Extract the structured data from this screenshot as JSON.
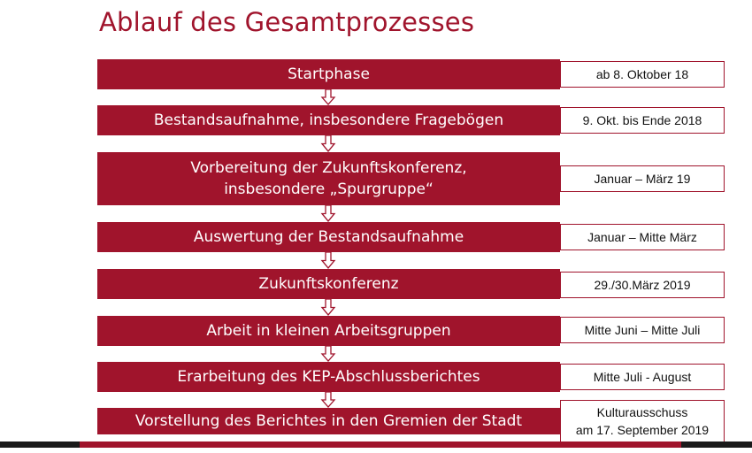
{
  "title": "Ablauf des Gesamtprozesses",
  "colors": {
    "accent": "#a0142c",
    "text_on_accent": "#ffffff"
  },
  "phases": [
    {
      "label": "Startphase",
      "date": "ab 8. Oktober 18"
    },
    {
      "label": "Bestandsaufnahme, insbesondere Fragebögen",
      "date": "9. Okt. bis Ende  2018"
    },
    {
      "label": "Vorbereitung der Zukunftskonferenz,\ninsbesondere „Spurgruppe“",
      "date": "Januar – März 19"
    },
    {
      "label": "Auswertung der Bestandsaufnahme",
      "date": "Januar – Mitte März"
    },
    {
      "label": "Zukunftskonferenz",
      "date": "29./30.März 2019"
    },
    {
      "label": "Arbeit in kleinen Arbeitsgruppen",
      "date": "Mitte Juni – Mitte Juli"
    },
    {
      "label": "Erarbeitung des KEP-Abschlussberichtes",
      "date": "Mitte Juli - August"
    },
    {
      "label": "Vorstellung des Berichtes in den Gremien der Stadt",
      "date": "Kulturausschuss\nam 17. September 2019"
    }
  ]
}
